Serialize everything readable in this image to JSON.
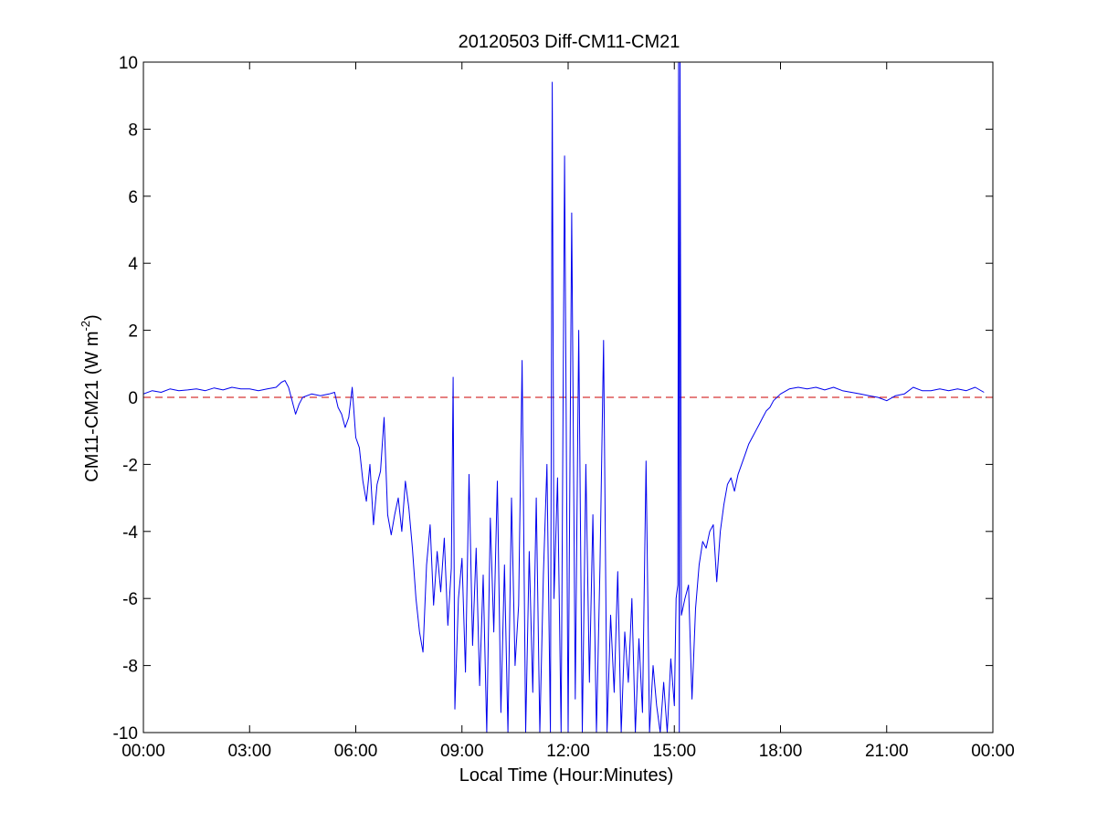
{
  "chart_data": {
    "type": "line",
    "title": "20120503 Diff-CM11-CM21",
    "xlabel": "Local Time (Hour:Minutes)",
    "ylabel": {
      "main": "CM11-CM21 (W m",
      "sup": "-2",
      "close": ")"
    },
    "xlim_hours": [
      0,
      24
    ],
    "ylim": [
      -10,
      10
    ],
    "grid": false,
    "x_ticks": [
      {
        "hours": 0,
        "label": "00:00"
      },
      {
        "hours": 3,
        "label": "03:00"
      },
      {
        "hours": 6,
        "label": "06:00"
      },
      {
        "hours": 9,
        "label": "09:00"
      },
      {
        "hours": 12,
        "label": "12:00"
      },
      {
        "hours": 15,
        "label": "15:00"
      },
      {
        "hours": 18,
        "label": "18:00"
      },
      {
        "hours": 21,
        "label": "21:00"
      },
      {
        "hours": 24,
        "label": "00:00"
      }
    ],
    "y_ticks": [
      {
        "value": 10,
        "label": "10"
      },
      {
        "value": 8,
        "label": "8"
      },
      {
        "value": 6,
        "label": "6"
      },
      {
        "value": 4,
        "label": "4"
      },
      {
        "value": 2,
        "label": "2"
      },
      {
        "value": 0,
        "label": "0"
      },
      {
        "value": -2,
        "label": "-2"
      },
      {
        "value": -4,
        "label": "-4"
      },
      {
        "value": -6,
        "label": "-6"
      },
      {
        "value": -8,
        "label": "-8"
      },
      {
        "value": -10,
        "label": "-10"
      }
    ],
    "reference_line": {
      "value": 0,
      "style": "dashed",
      "color": "#cc0000"
    },
    "series": [
      {
        "color": "#0000ee",
        "points": [
          [
            0.0,
            0.1
          ],
          [
            0.25,
            0.2
          ],
          [
            0.5,
            0.15
          ],
          [
            0.75,
            0.25
          ],
          [
            1.0,
            0.2
          ],
          [
            1.25,
            0.22
          ],
          [
            1.5,
            0.25
          ],
          [
            1.75,
            0.2
          ],
          [
            2.0,
            0.28
          ],
          [
            2.25,
            0.22
          ],
          [
            2.5,
            0.3
          ],
          [
            2.75,
            0.25
          ],
          [
            3.0,
            0.25
          ],
          [
            3.25,
            0.2
          ],
          [
            3.5,
            0.25
          ],
          [
            3.75,
            0.3
          ],
          [
            3.9,
            0.45
          ],
          [
            4.0,
            0.5
          ],
          [
            4.1,
            0.3
          ],
          [
            4.2,
            -0.1
          ],
          [
            4.3,
            -0.5
          ],
          [
            4.4,
            -0.2
          ],
          [
            4.5,
            0.0
          ],
          [
            4.75,
            0.1
          ],
          [
            5.0,
            0.05
          ],
          [
            5.25,
            0.1
          ],
          [
            5.4,
            0.15
          ],
          [
            5.5,
            -0.3
          ],
          [
            5.6,
            -0.5
          ],
          [
            5.7,
            -0.9
          ],
          [
            5.8,
            -0.6
          ],
          [
            5.9,
            0.3
          ],
          [
            6.0,
            -1.2
          ],
          [
            6.1,
            -1.5
          ],
          [
            6.2,
            -2.5
          ],
          [
            6.3,
            -3.1
          ],
          [
            6.4,
            -2.0
          ],
          [
            6.5,
            -3.8
          ],
          [
            6.6,
            -2.6
          ],
          [
            6.7,
            -2.2
          ],
          [
            6.8,
            -0.6
          ],
          [
            6.9,
            -3.5
          ],
          [
            7.0,
            -4.1
          ],
          [
            7.1,
            -3.5
          ],
          [
            7.2,
            -3.0
          ],
          [
            7.3,
            -4.0
          ],
          [
            7.4,
            -2.5
          ],
          [
            7.5,
            -3.3
          ],
          [
            7.6,
            -4.5
          ],
          [
            7.7,
            -6.0
          ],
          [
            7.8,
            -7.0
          ],
          [
            7.9,
            -7.6
          ],
          [
            8.0,
            -5.0
          ],
          [
            8.1,
            -3.8
          ],
          [
            8.2,
            -6.2
          ],
          [
            8.3,
            -4.6
          ],
          [
            8.4,
            -5.8
          ],
          [
            8.5,
            -4.2
          ],
          [
            8.6,
            -6.8
          ],
          [
            8.7,
            -5.1
          ],
          [
            8.75,
            0.6
          ],
          [
            8.8,
            -9.3
          ],
          [
            8.9,
            -6.0
          ],
          [
            9.0,
            -4.8
          ],
          [
            9.1,
            -8.2
          ],
          [
            9.2,
            -2.3
          ],
          [
            9.3,
            -7.4
          ],
          [
            9.4,
            -4.5
          ],
          [
            9.5,
            -8.6
          ],
          [
            9.6,
            -5.3
          ],
          [
            9.7,
            -10.0
          ],
          [
            9.8,
            -3.6
          ],
          [
            9.9,
            -7.0
          ],
          [
            10.0,
            -2.5
          ],
          [
            10.1,
            -9.4
          ],
          [
            10.2,
            -5.0
          ],
          [
            10.3,
            -10.0
          ],
          [
            10.4,
            -3.0
          ],
          [
            10.5,
            -8.0
          ],
          [
            10.6,
            -6.2
          ],
          [
            10.7,
            1.1
          ],
          [
            10.8,
            -10.0
          ],
          [
            10.9,
            -4.6
          ],
          [
            11.0,
            -8.8
          ],
          [
            11.1,
            -3.0
          ],
          [
            11.2,
            -10.0
          ],
          [
            11.3,
            -5.3
          ],
          [
            11.4,
            -2.0
          ],
          [
            11.5,
            -10.0
          ],
          [
            11.55,
            9.4
          ],
          [
            11.6,
            -6.0
          ],
          [
            11.7,
            -2.4
          ],
          [
            11.8,
            -10.0
          ],
          [
            11.9,
            7.2
          ],
          [
            12.0,
            -10.0
          ],
          [
            12.1,
            5.5
          ],
          [
            12.2,
            -9.0
          ],
          [
            12.3,
            2.0
          ],
          [
            12.4,
            -10.0
          ],
          [
            12.5,
            -2.0
          ],
          [
            12.6,
            -8.5
          ],
          [
            12.7,
            -3.5
          ],
          [
            12.8,
            -10.0
          ],
          [
            12.9,
            -5.0
          ],
          [
            13.0,
            1.7
          ],
          [
            13.1,
            -10.0
          ],
          [
            13.2,
            -6.5
          ],
          [
            13.3,
            -8.8
          ],
          [
            13.4,
            -5.2
          ],
          [
            13.5,
            -10.0
          ],
          [
            13.6,
            -7.0
          ],
          [
            13.7,
            -8.5
          ],
          [
            13.8,
            -6.0
          ],
          [
            13.9,
            -10.0
          ],
          [
            14.0,
            -7.2
          ],
          [
            14.1,
            -9.4
          ],
          [
            14.2,
            -1.9
          ],
          [
            14.3,
            -10.0
          ],
          [
            14.4,
            -8.0
          ],
          [
            14.5,
            -9.2
          ],
          [
            14.6,
            -10.0
          ],
          [
            14.7,
            -8.5
          ],
          [
            14.8,
            -10.0
          ],
          [
            14.9,
            -7.8
          ],
          [
            15.0,
            -9.2
          ],
          [
            15.05,
            -6.0
          ],
          [
            15.1,
            -5.6
          ],
          [
            15.12,
            10.0
          ],
          [
            15.14,
            -10.0
          ],
          [
            15.16,
            10.0
          ],
          [
            15.2,
            -6.5
          ],
          [
            15.3,
            -6.0
          ],
          [
            15.4,
            -5.6
          ],
          [
            15.5,
            -9.0
          ],
          [
            15.6,
            -6.3
          ],
          [
            15.7,
            -5.0
          ],
          [
            15.8,
            -4.3
          ],
          [
            15.9,
            -4.5
          ],
          [
            16.0,
            -4.0
          ],
          [
            16.1,
            -3.8
          ],
          [
            16.2,
            -5.5
          ],
          [
            16.3,
            -4.0
          ],
          [
            16.4,
            -3.2
          ],
          [
            16.5,
            -2.6
          ],
          [
            16.6,
            -2.4
          ],
          [
            16.7,
            -2.8
          ],
          [
            16.8,
            -2.3
          ],
          [
            16.9,
            -2.0
          ],
          [
            17.0,
            -1.7
          ],
          [
            17.1,
            -1.4
          ],
          [
            17.2,
            -1.2
          ],
          [
            17.3,
            -1.0
          ],
          [
            17.4,
            -0.8
          ],
          [
            17.5,
            -0.6
          ],
          [
            17.6,
            -0.4
          ],
          [
            17.7,
            -0.3
          ],
          [
            17.8,
            -0.1
          ],
          [
            18.0,
            0.1
          ],
          [
            18.25,
            0.25
          ],
          [
            18.5,
            0.3
          ],
          [
            18.75,
            0.25
          ],
          [
            19.0,
            0.3
          ],
          [
            19.25,
            0.22
          ],
          [
            19.5,
            0.3
          ],
          [
            19.75,
            0.2
          ],
          [
            20.0,
            0.15
          ],
          [
            20.25,
            0.1
          ],
          [
            20.5,
            0.05
          ],
          [
            20.75,
            0.0
          ],
          [
            21.0,
            -0.1
          ],
          [
            21.25,
            0.05
          ],
          [
            21.5,
            0.1
          ],
          [
            21.75,
            0.3
          ],
          [
            22.0,
            0.2
          ],
          [
            22.25,
            0.2
          ],
          [
            22.5,
            0.25
          ],
          [
            22.75,
            0.2
          ],
          [
            23.0,
            0.25
          ],
          [
            23.25,
            0.2
          ],
          [
            23.5,
            0.3
          ],
          [
            23.75,
            0.15
          ]
        ]
      }
    ]
  }
}
